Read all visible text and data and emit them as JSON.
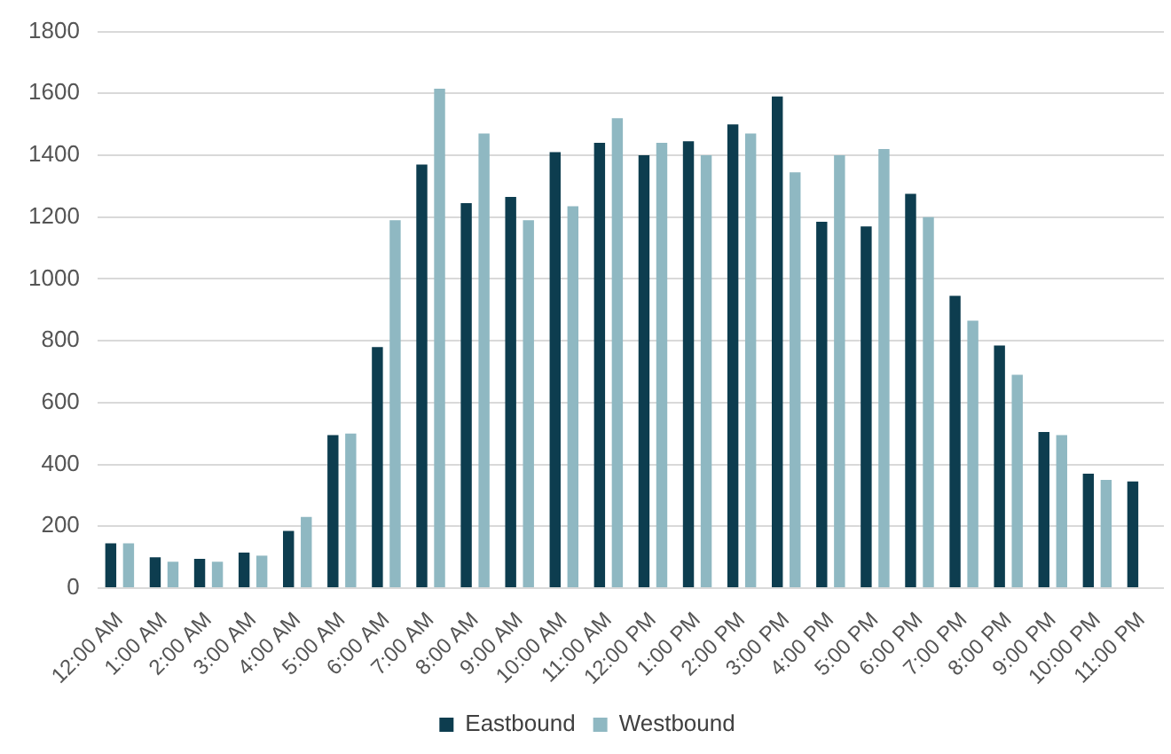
{
  "chart_data": {
    "type": "bar",
    "categories": [
      "12:00 AM",
      "1:00 AM",
      "2:00 AM",
      "3:00 AM",
      "4:00 AM",
      "5:00 AM",
      "6:00 AM",
      "7:00 AM",
      "8:00 AM",
      "9:00 AM",
      "10:00 AM",
      "11:00 AM",
      "12:00 PM",
      "1:00 PM",
      "2:00 PM",
      "3:00 PM",
      "4:00 PM",
      "5:00 PM",
      "6:00 PM",
      "7:00 PM",
      "8:00 PM",
      "9:00 PM",
      "10:00 PM",
      "11:00 PM"
    ],
    "series": [
      {
        "name": "Eastbound",
        "color": "#0d3d4f",
        "values": [
          145,
          100,
          95,
          115,
          185,
          495,
          780,
          1370,
          1245,
          1265,
          1410,
          1440,
          1400,
          1445,
          1500,
          1590,
          1185,
          1170,
          1275,
          945,
          785,
          505,
          370,
          345
        ]
      },
      {
        "name": "Westbound",
        "color": "#8fb8c2",
        "values": [
          145,
          85,
          85,
          105,
          230,
          500,
          1190,
          1615,
          1470,
          1190,
          1235,
          1520,
          1440,
          1400,
          1470,
          1345,
          1400,
          1420,
          1200,
          865,
          690,
          495,
          350,
          null
        ]
      }
    ],
    "ylim": [
      0,
      1800
    ],
    "yticks": [
      0,
      200,
      400,
      600,
      800,
      1000,
      1200,
      1400,
      1600,
      1800
    ],
    "grid": "y",
    "legend": "bottom"
  }
}
